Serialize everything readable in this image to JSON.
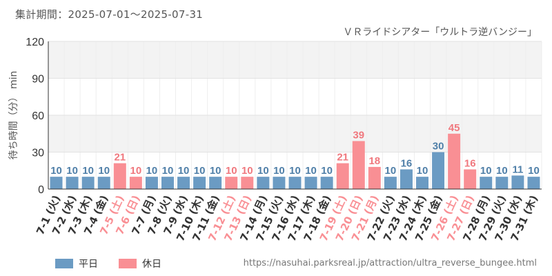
{
  "header": {
    "period": "集計期間：2025-07-01～2025-07-31"
  },
  "colors": {
    "weekday": "#6b9bc3",
    "holiday": "#f98f94",
    "weekday_text": "#4f7fa8",
    "holiday_text": "#f0787e",
    "axis_text": "#333333",
    "grid_band": "#f3f3f3"
  },
  "legend": {
    "weekday_label": "平日",
    "holiday_label": "休日"
  },
  "source_url": "https://nasuhai.parksreal.jp/attraction/ultra_reverse_bungee.html",
  "chart_data": {
    "type": "bar",
    "title": "ＶＲライドシアター「ウルトラ逆バンジー」",
    "ylabel": "待ち時間（分） min",
    "xlabel": "",
    "ylim": [
      0,
      120
    ],
    "yticks": [
      0,
      30,
      60,
      90,
      120
    ],
    "categories": [
      "7-1 (火)",
      "7-2 (水)",
      "7-3 (木)",
      "7-4 (金)",
      "7-5 (土)",
      "7-6 (日)",
      "7-7 (月)",
      "7-8 (火)",
      "7-9 (水)",
      "7-10 (木)",
      "7-11 (金)",
      "7-12 (土)",
      "7-13 (日)",
      "7-14 (月)",
      "7-15 (火)",
      "7-16 (水)",
      "7-17 (木)",
      "7-18 (金)",
      "7-19 (土)",
      "7-20 (日)",
      "7-21 (月)",
      "7-22 (火)",
      "7-23 (水)",
      "7-24 (木)",
      "7-25 (金)",
      "7-26 (土)",
      "7-27 (日)",
      "7-28 (月)",
      "7-29 (火)",
      "7-30 (水)",
      "7-31 (木)"
    ],
    "values": [
      10,
      10,
      10,
      10,
      21,
      10,
      10,
      10,
      10,
      10,
      10,
      10,
      10,
      10,
      10,
      10,
      10,
      10,
      21,
      39,
      18,
      10,
      16,
      10,
      30,
      45,
      16,
      10,
      10,
      11,
      10
    ],
    "day_type": [
      "weekday",
      "weekday",
      "weekday",
      "weekday",
      "holiday",
      "holiday",
      "weekday",
      "weekday",
      "weekday",
      "weekday",
      "weekday",
      "holiday",
      "holiday",
      "weekday",
      "weekday",
      "weekday",
      "weekday",
      "weekday",
      "holiday",
      "holiday",
      "holiday",
      "weekday",
      "weekday",
      "weekday",
      "weekday",
      "holiday",
      "holiday",
      "weekday",
      "weekday",
      "weekday",
      "weekday"
    ],
    "grid": true,
    "legend_position": "bottom-left"
  }
}
